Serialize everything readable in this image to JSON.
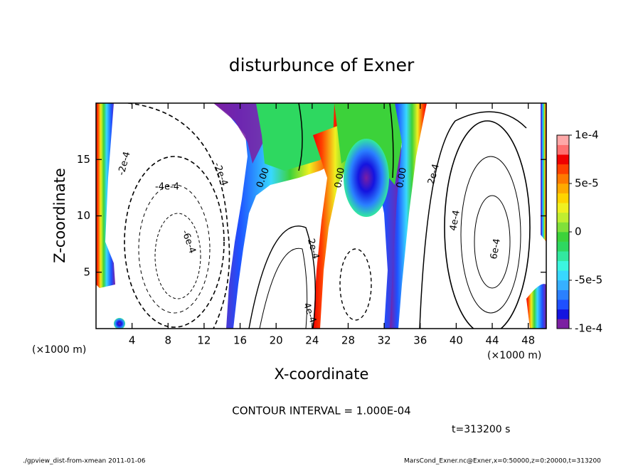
{
  "chart_data": {
    "type": "contour",
    "title": "disturbunce of Exner",
    "xlabel": "X-coordinate",
    "ylabel": "Z-coordinate",
    "xunit": "(×1000 m)",
    "xunit_right": "(×1000 m)",
    "xlim": [
      0,
      50
    ],
    "xticks": [
      4,
      8,
      12,
      16,
      20,
      24,
      28,
      32,
      36,
      40,
      44,
      48
    ],
    "ylim": [
      0,
      20
    ],
    "yticks": [
      5,
      10,
      15
    ],
    "colorbar": {
      "lim": [
        -0.0001,
        0.0001
      ],
      "ticks": [
        {
          "value": 0.0001,
          "label": "1e-4"
        },
        {
          "value": 5e-05,
          "label": "5e-5"
        },
        0,
        {
          "value": -5e-05,
          "label": "-5e-5"
        },
        {
          "value": -0.0001,
          "label": "-1e-4"
        }
      ],
      "colors": [
        "#7b1fa2",
        "#1414e0",
        "#1e50ff",
        "#2a80ff",
        "#36b0ff",
        "#38d8ff",
        "#3cf5e0",
        "#32e8a0",
        "#2ed860",
        "#3cd23a",
        "#80e03a",
        "#c0ee30",
        "#f0f020",
        "#ffd400",
        "#ffaa00",
        "#ff7a00",
        "#ff4000",
        "#f00000",
        "#ff7070",
        "#ffa8a8"
      ]
    },
    "contour_labels": [
      "-2e-4",
      "-4e-4",
      "-2e-4",
      "-6e-4",
      "0.00",
      "0.00",
      "0.00",
      "2e-4",
      "2e-4",
      "4e-4",
      "6e-4",
      "4e-4"
    ],
    "contour_interval": "CONTOUR INTERVAL = 1.000E-04",
    "time": "t=313200 s",
    "footer_left": "./gpview_dist-from-xmean  2011-01-06",
    "footer_right": "MarsCond_Exner.nc@Exner,x=0:50000,z=0:20000,t=313200"
  }
}
